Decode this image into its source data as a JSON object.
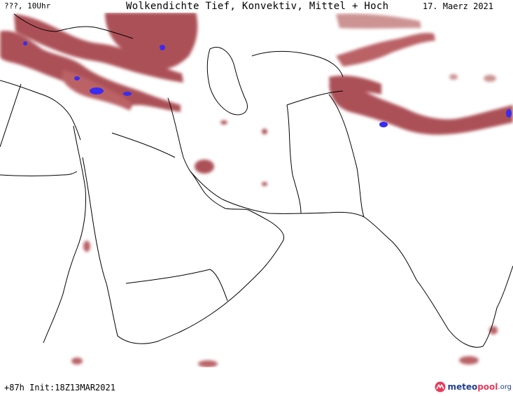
{
  "header": {
    "left": "???, 10Uhr",
    "title": "Wolkendichte  Tief, Konvektiv, Mittel + Hoch",
    "date": "17. Maerz 2021"
  },
  "footer": {
    "run": "+87h Init:18Z13MAR2021"
  },
  "brand": {
    "part1": "meteo",
    "part2": "pool",
    "part3": ".org"
  },
  "colors": {
    "cloud": "#a6424a",
    "cloud_light": "#c98a8a",
    "convective": "#3a2cf0",
    "border": "#000000"
  },
  "icons": [
    "meteopool-logo-icon"
  ]
}
